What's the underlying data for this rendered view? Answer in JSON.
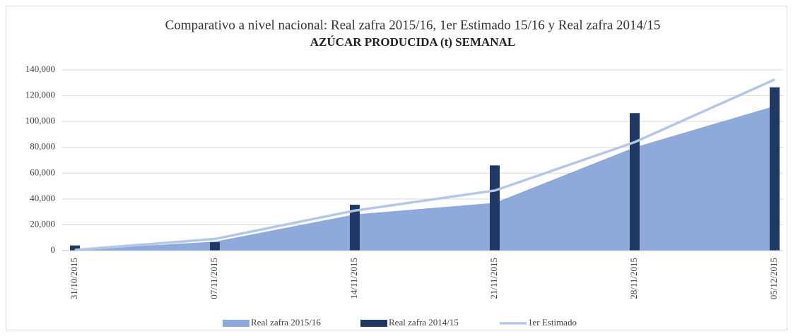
{
  "chart_data": {
    "type": "combo",
    "title": "Comparativo a nivel nacional: Real zafra 2015/16, 1er Estimado 15/16 y Real zafra 2014/15",
    "subtitle": "AZÚCAR PRODUCIDA (t) SEMANAL",
    "categories": [
      "31/10/2015",
      "07/11/2015",
      "14/11/2015",
      "21/11/2015",
      "28/11/2015",
      "05/12/2015"
    ],
    "series": [
      {
        "name": "Real zafra 2015/16",
        "type": "area",
        "color": "#8eaadb",
        "values": [
          500,
          7000,
          28000,
          37000,
          80000,
          112000
        ]
      },
      {
        "name": "Real zafra 2014/15",
        "type": "bar",
        "color": "#1f3864",
        "values": [
          4000,
          6500,
          35500,
          66000,
          106500,
          126500
        ]
      },
      {
        "name": "1er Estimado",
        "type": "line",
        "color": "#b4c7e7",
        "values": [
          500,
          9000,
          31000,
          46500,
          84000,
          132500
        ]
      }
    ],
    "ylim": [
      0,
      140000
    ],
    "yticks": [
      0,
      {
        "value": 20000,
        "label": "20,000"
      },
      {
        "value": 40000,
        "label": "40,000"
      },
      {
        "value": 60000,
        "label": "60,000"
      },
      {
        "value": 80000,
        "label": "80,000"
      },
      {
        "value": 100000,
        "label": "100,000"
      },
      {
        "value": 120000,
        "label": "120,000"
      },
      {
        "value": 140000,
        "label": "140,000"
      }
    ],
    "grid": true,
    "legend": "bottom"
  }
}
